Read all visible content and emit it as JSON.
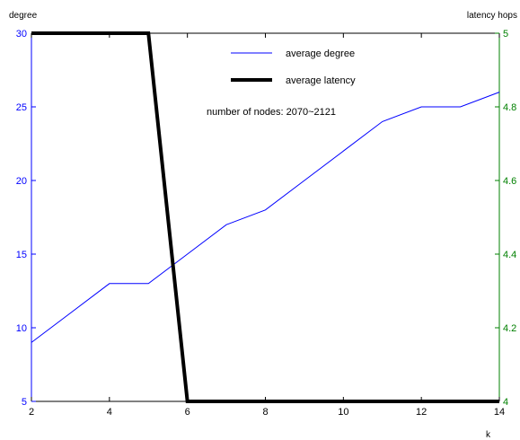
{
  "chart_data": {
    "type": "line",
    "x": [
      2,
      3,
      4,
      5,
      6,
      7,
      8,
      9,
      10,
      11,
      12,
      13,
      14
    ],
    "series": [
      {
        "name": "average degree",
        "axis": "left",
        "color": "#0000ff",
        "values": [
          9,
          11,
          13,
          13,
          15,
          17,
          18,
          20,
          22,
          24,
          25,
          25,
          26
        ]
      },
      {
        "name": "average latency",
        "axis": "right",
        "color": "#000000",
        "values": [
          5,
          5,
          5,
          5,
          4,
          4,
          4,
          4,
          4,
          4,
          4,
          4,
          4
        ]
      }
    ],
    "xlabel": "k",
    "ylabel_left": "degree",
    "ylabel_right": "latency hops",
    "xlim": [
      2,
      14
    ],
    "ylim_left": [
      5,
      30
    ],
    "ylim_right": [
      4,
      5
    ],
    "xticks": [
      "2",
      "4",
      "6",
      "8",
      "10",
      "12",
      "14"
    ],
    "yticks_left": [
      "5",
      "10",
      "15",
      "20",
      "25",
      "30"
    ],
    "yticks_right": [
      "4",
      "4.2",
      "4.4",
      "4.6",
      "4.8",
      "5"
    ],
    "left_axis_color": "#0000ff",
    "right_axis_color": "#008000",
    "annotation": "number of nodes: 2070~2121",
    "grid": false,
    "legend_position": "top-center"
  }
}
